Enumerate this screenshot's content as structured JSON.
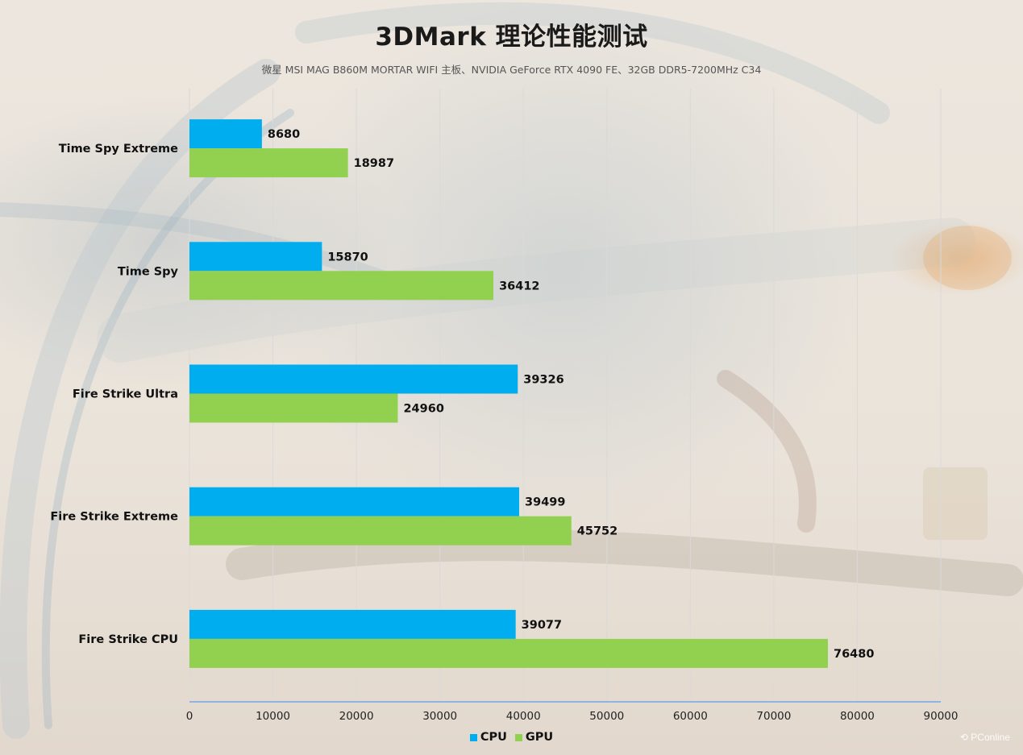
{
  "title": "3DMark 理论性能测试",
  "subtitle": "微星 MSI MAG B860M MORTAR WIFI 主板、NVIDIA GeForce RTX 4090 FE、32GB DDR5-7200MHz  C34",
  "watermark": "PConline",
  "colors": {
    "cpu": "#00adef",
    "gpu": "#92d050",
    "grid": "#d9d9d9",
    "axis": "#8eb4e3"
  },
  "chart_data": {
    "type": "bar",
    "orientation": "horizontal",
    "categories": [
      "Time Spy Extreme",
      "Time Spy",
      "Fire Strike Ultra",
      "Fire Strike Extreme",
      "Fire Strike CPU"
    ],
    "series": [
      {
        "name": "CPU",
        "values": [
          8680,
          15870,
          39326,
          39499,
          39077
        ]
      },
      {
        "name": "GPU",
        "values": [
          18987,
          36412,
          24960,
          45752,
          76480
        ]
      }
    ],
    "xlim": [
      0,
      90000
    ],
    "xticks": [
      "0",
      "10000",
      "20000",
      "30000",
      "40000",
      "50000",
      "60000",
      "70000",
      "80000",
      "90000"
    ],
    "grid": true,
    "legend_position": "bottom"
  }
}
